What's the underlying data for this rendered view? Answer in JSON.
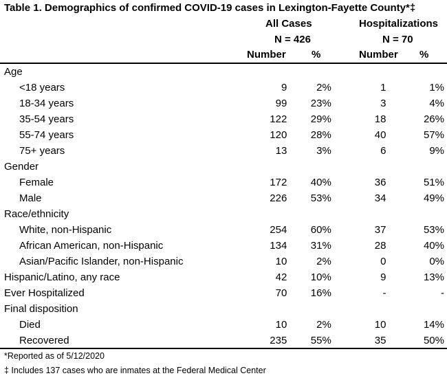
{
  "title": "Table 1. Demographics of confirmed COVID-19 cases in Lexington-Fayette County*‡",
  "columns": {
    "all_cases": {
      "label": "All Cases",
      "n": "N = 426"
    },
    "hospitalizations": {
      "label": "Hospitalizations",
      "n": "N = 70"
    },
    "number_label": "Number",
    "percent_label": "%"
  },
  "rows": [
    {
      "label": "Age",
      "type": "section"
    },
    {
      "label": "<18 years",
      "type": "sub",
      "all_num": "9",
      "all_pct": "2%",
      "hosp_num": "1",
      "hosp_pct": "1%"
    },
    {
      "label": "18-34 years",
      "type": "sub",
      "all_num": "99",
      "all_pct": "23%",
      "hosp_num": "3",
      "hosp_pct": "4%"
    },
    {
      "label": "35-54 years",
      "type": "sub",
      "all_num": "122",
      "all_pct": "29%",
      "hosp_num": "18",
      "hosp_pct": "26%"
    },
    {
      "label": "55-74 years",
      "type": "sub",
      "all_num": "120",
      "all_pct": "28%",
      "hosp_num": "40",
      "hosp_pct": "57%"
    },
    {
      "label": "75+ years",
      "type": "sub",
      "all_num": "13",
      "all_pct": "3%",
      "hosp_num": "6",
      "hosp_pct": "9%"
    },
    {
      "label": "Gender",
      "type": "section"
    },
    {
      "label": "Female",
      "type": "sub",
      "all_num": "172",
      "all_pct": "40%",
      "hosp_num": "36",
      "hosp_pct": "51%"
    },
    {
      "label": "Male",
      "type": "sub",
      "all_num": "226",
      "all_pct": "53%",
      "hosp_num": "34",
      "hosp_pct": "49%"
    },
    {
      "label": "Race/ethnicity",
      "type": "section"
    },
    {
      "label": "White, non-Hispanic",
      "type": "sub",
      "all_num": "254",
      "all_pct": "60%",
      "hosp_num": "37",
      "hosp_pct": "53%"
    },
    {
      "label": "African American, non-Hispanic",
      "type": "sub",
      "all_num": "134",
      "all_pct": "31%",
      "hosp_num": "28",
      "hosp_pct": "40%"
    },
    {
      "label": "Asian/Pacific Islander, non-Hispanic",
      "type": "sub",
      "all_num": "10",
      "all_pct": "2%",
      "hosp_num": "0",
      "hosp_pct": "0%"
    },
    {
      "label": "Hispanic/Latino, any race",
      "type": "top",
      "all_num": "42",
      "all_pct": "10%",
      "hosp_num": "9",
      "hosp_pct": "13%"
    },
    {
      "label": "Ever Hospitalized",
      "type": "top",
      "all_num": "70",
      "all_pct": "16%",
      "hosp_num": "-",
      "hosp_pct": "-"
    },
    {
      "label": "Final disposition",
      "type": "section"
    },
    {
      "label": "Died",
      "type": "sub",
      "all_num": "10",
      "all_pct": "2%",
      "hosp_num": "10",
      "hosp_pct": "14%"
    },
    {
      "label": "Recovered",
      "type": "sub",
      "all_num": "235",
      "all_pct": "55%",
      "hosp_num": "35",
      "hosp_pct": "50%"
    }
  ],
  "footnotes": [
    "*Reported as of 5/12/2020",
    "‡ Includes 137 cases who are inmates at the Federal Medical Center"
  ]
}
